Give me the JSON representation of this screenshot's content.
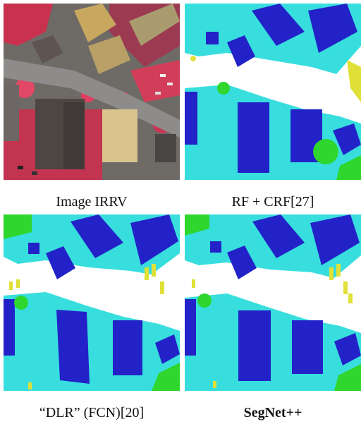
{
  "captions": {
    "image_irrv": "Image IRRV",
    "rf_crf": "RF + CRF[27]",
    "dlr_fcn": "“DLR” (FCN)[20]",
    "segnet": "SegNet++"
  },
  "colors": {
    "building": "#2222c8",
    "low_vegetation": "#38dede",
    "tree": "#2ed62e",
    "car": "#e0e038",
    "impervious": "#ffffff",
    "photo_vegetation": "#d63a5a",
    "photo_road": "#8a8a8a",
    "photo_roof": "#c9b36a"
  },
  "icons": {
    "panel_1": "aerial-photo",
    "panel_2": "segmentation-map",
    "panel_3": "segmentation-map",
    "panel_4": "segmentation-map"
  }
}
